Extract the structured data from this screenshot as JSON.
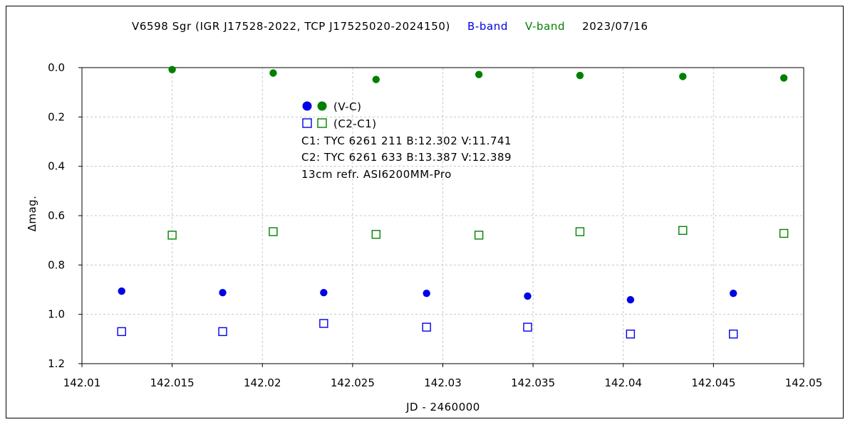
{
  "chart_data": {
    "type": "scatter",
    "title": {
      "main": "V6598 Sgr (IGR J17528-2022, TCP J17525020-2024150)",
      "b_label": "B-band",
      "v_label": "V-band",
      "date": "2023/07/16"
    },
    "xlabel": "JD - 2460000",
    "ylabel": "Δmag.",
    "xlim": [
      142.01,
      142.05
    ],
    "ylim": [
      0.0,
      1.2
    ],
    "y_inverted": true,
    "grid": true,
    "x_ticks": [
      {
        "value": 142.01,
        "label": "142.01"
      },
      {
        "value": 142.015,
        "label": "142.015"
      },
      {
        "value": 142.02,
        "label": "142.02"
      },
      {
        "value": 142.025,
        "label": "142.025"
      },
      {
        "value": 142.03,
        "label": "142.03"
      },
      {
        "value": 142.035,
        "label": "142.035"
      },
      {
        "value": 142.04,
        "label": "142.04"
      },
      {
        "value": 142.045,
        "label": "142.045"
      },
      {
        "value": 142.05,
        "label": "142.05"
      }
    ],
    "y_ticks": [
      {
        "value": 0.0,
        "label": "0.0"
      },
      {
        "value": 0.2,
        "label": "0.2"
      },
      {
        "value": 0.4,
        "label": "0.4"
      },
      {
        "value": 0.6,
        "label": "0.6"
      },
      {
        "value": 0.8,
        "label": "0.8"
      },
      {
        "value": 1.0,
        "label": "1.0"
      },
      {
        "value": 1.2,
        "label": "1.2"
      }
    ],
    "colors": {
      "B": "#0000e6",
      "V": "#008000"
    },
    "series": [
      {
        "band": "B",
        "marker": "filled-circle",
        "x": [
          142.0122,
          142.0178,
          142.0234,
          142.0291,
          142.0347,
          142.0404,
          142.0461
        ],
        "y": [
          0.906,
          0.912,
          0.912,
          0.915,
          0.926,
          0.941,
          0.915
        ]
      },
      {
        "band": "V",
        "marker": "filled-circle",
        "x": [
          142.015,
          142.0206,
          142.0263,
          142.032,
          142.0376,
          142.0433,
          142.0489
        ],
        "y": [
          0.008,
          0.022,
          0.048,
          0.028,
          0.032,
          0.036,
          0.042
        ]
      },
      {
        "band": "B",
        "marker": "open-square",
        "x": [
          142.0122,
          142.0178,
          142.0234,
          142.0291,
          142.0347,
          142.0404,
          142.0461
        ],
        "y": [
          1.07,
          1.07,
          1.037,
          1.052,
          1.052,
          1.08,
          1.08
        ]
      },
      {
        "band": "V",
        "marker": "open-square",
        "x": [
          142.015,
          142.0206,
          142.0263,
          142.032,
          142.0376,
          142.0433,
          142.0489
        ],
        "y": [
          0.679,
          0.665,
          0.676,
          0.679,
          0.665,
          0.66,
          0.672
        ]
      }
    ],
    "annotations": {
      "legend_vc": "(V-C)",
      "legend_c2c1": "(C2-C1)",
      "c1": "C1: TYC 6261 211  B:12.302  V:11.741",
      "c2": "C2: TYC 6261 633  B:13.387  V:12.389",
      "equipment": "13cm refr.  ASI6200MM-Pro"
    }
  }
}
